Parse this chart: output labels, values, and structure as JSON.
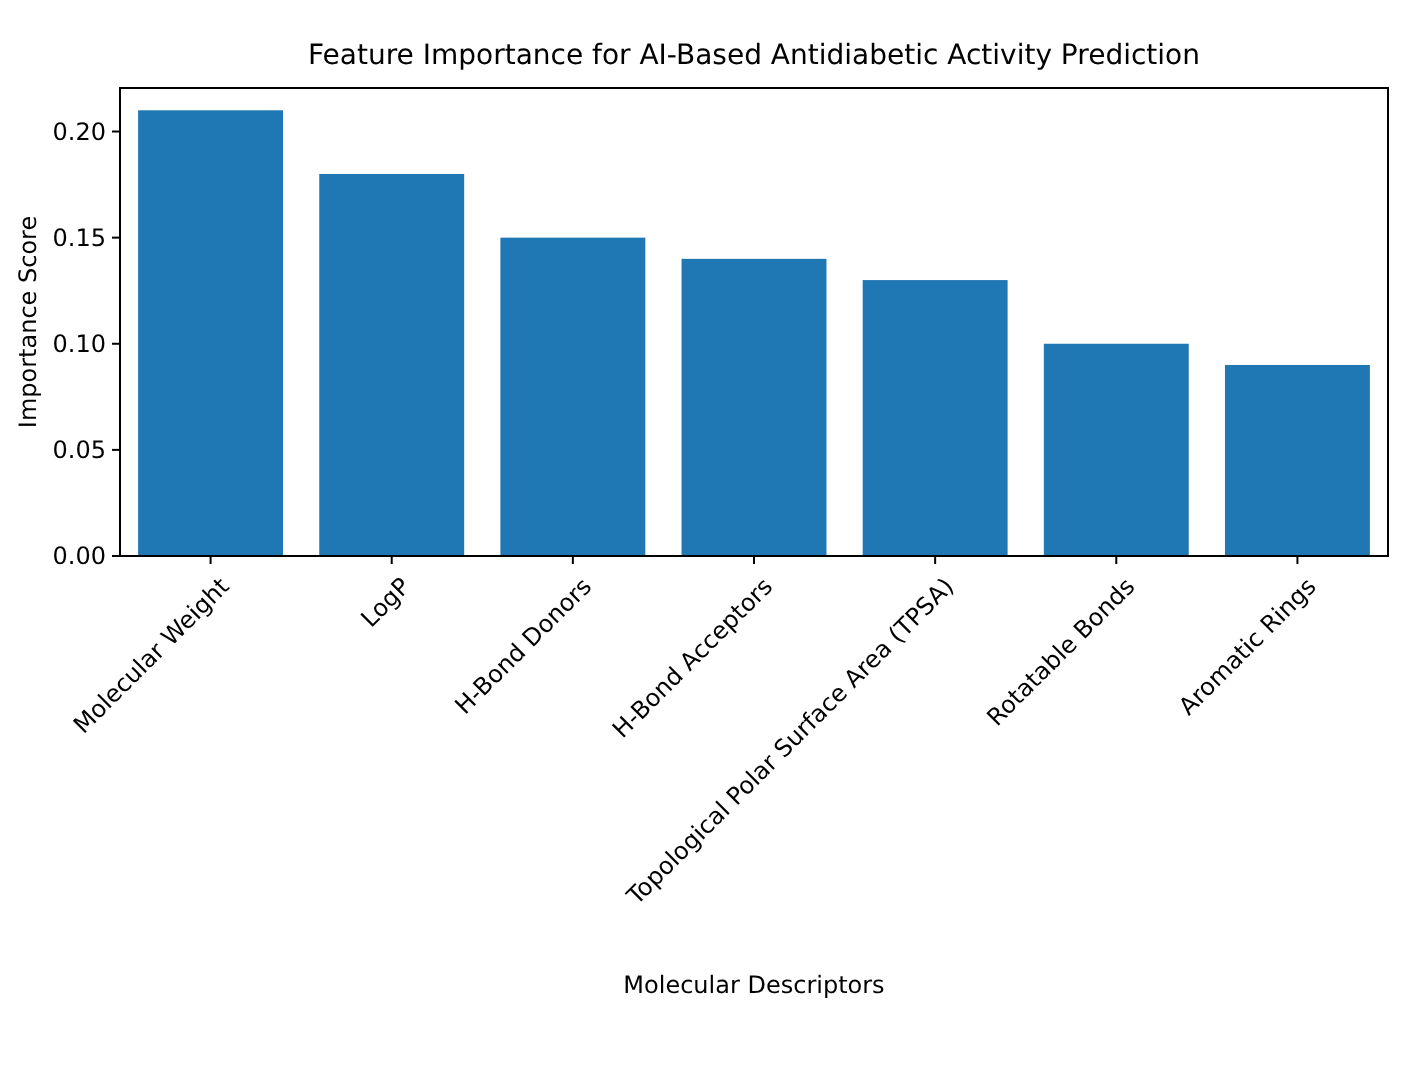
{
  "chart_data": {
    "type": "bar",
    "title": "Feature Importance for AI-Based Antidiabetic Activity Prediction",
    "xlabel": "Molecular Descriptors",
    "ylabel": "Importance Score",
    "categories": [
      "Molecular Weight",
      "LogP",
      "H-Bond Donors",
      "H-Bond Acceptors",
      "Topological Polar Surface Area (TPSA)",
      "Rotatable Bonds",
      "Aromatic Rings"
    ],
    "values": [
      0.21,
      0.18,
      0.15,
      0.14,
      0.13,
      0.1,
      0.09
    ],
    "color": "#1f77b4",
    "ylim": [
      0,
      0.2205
    ],
    "yticks": [
      {
        "value": 0,
        "label": "0.00"
      },
      {
        "value": 0.05,
        "label": "0.05"
      },
      {
        "value": 0.1,
        "label": "0.10"
      },
      {
        "value": 0.15,
        "label": "0.15"
      },
      {
        "value": 0.2,
        "label": "0.20"
      }
    ],
    "grid": false
  }
}
